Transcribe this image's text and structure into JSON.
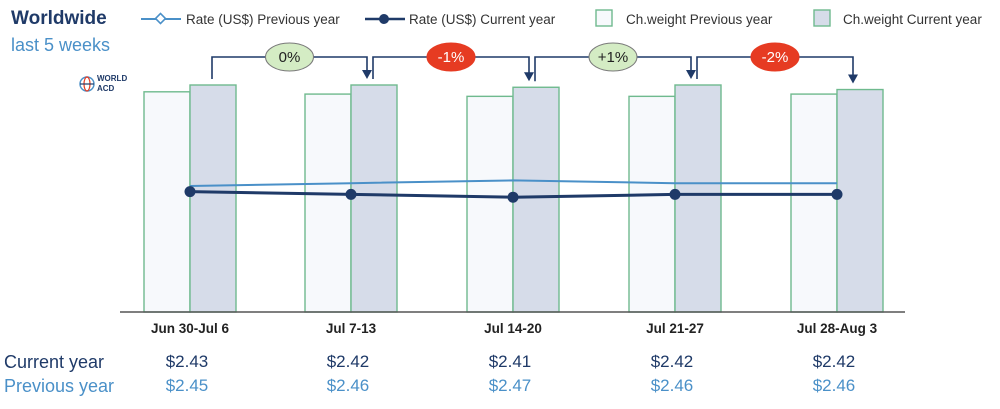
{
  "header": {
    "title": "Worldwide",
    "subtitle": "last 5 weeks"
  },
  "logo": {
    "text_line1": "WORLD",
    "text_line2": "ACD"
  },
  "colors": {
    "bar_prev_fill": "#f7f9fc",
    "bar_cur_fill": "#d6dce9",
    "bar_stroke": "#6fba8e",
    "line_cur": "#1f3a68",
    "line_prev": "#4a90c8",
    "badge_neutral": "#d4ecc4",
    "badge_negative": "#e63b22",
    "connector": "#1f3a68"
  },
  "legend": {
    "items": [
      {
        "label": "Rate (US$) Previous year",
        "kind": "line-prev"
      },
      {
        "label": "Rate (US$) Current year",
        "kind": "line-cur"
      },
      {
        "label": "Ch.weight Previous year",
        "kind": "bar-prev"
      },
      {
        "label": "Ch.weight Current year",
        "kind": "bar-cur"
      }
    ]
  },
  "rows": {
    "current_label": "Current year",
    "previous_label": "Previous year"
  },
  "chart_data": {
    "type": "bar",
    "title": "Worldwide",
    "subtitle": "last 5 weeks",
    "categories": [
      "Jun 30-Jul 6",
      "Jul 7-13",
      "Jul 14-20",
      "Jul 21-27",
      "Jul 28-Aug 3"
    ],
    "series": [
      {
        "name": "Ch.weight Previous year",
        "type": "bar",
        "values": [
          97,
          96,
          95,
          95,
          96
        ]
      },
      {
        "name": "Ch.weight Current year",
        "type": "bar",
        "values": [
          100,
          100,
          99,
          100,
          98
        ]
      },
      {
        "name": "Rate (US$) Previous year",
        "type": "line",
        "values": [
          2.45,
          2.46,
          2.47,
          2.46,
          2.46
        ]
      },
      {
        "name": "Rate (US$) Current year",
        "type": "line",
        "values": [
          2.43,
          2.42,
          2.41,
          2.42,
          2.42
        ]
      }
    ],
    "rate_current_labels": [
      "$2.43",
      "$2.42",
      "$2.41",
      "$2.42",
      "$2.42"
    ],
    "rate_previous_labels": [
      "$2.45",
      "$2.46",
      "$2.47",
      "$2.46",
      "$2.46"
    ],
    "week_changes": [
      {
        "label": "0%",
        "tone": "neutral"
      },
      {
        "label": "-1%",
        "tone": "negative"
      },
      {
        "label": "+1%",
        "tone": "neutral"
      },
      {
        "label": "-2%",
        "tone": "negative"
      }
    ],
    "weight_index_range": [
      0,
      100
    ],
    "rate_range": [
      2.0,
      2.9
    ],
    "grid": false,
    "legend_position": "top"
  }
}
